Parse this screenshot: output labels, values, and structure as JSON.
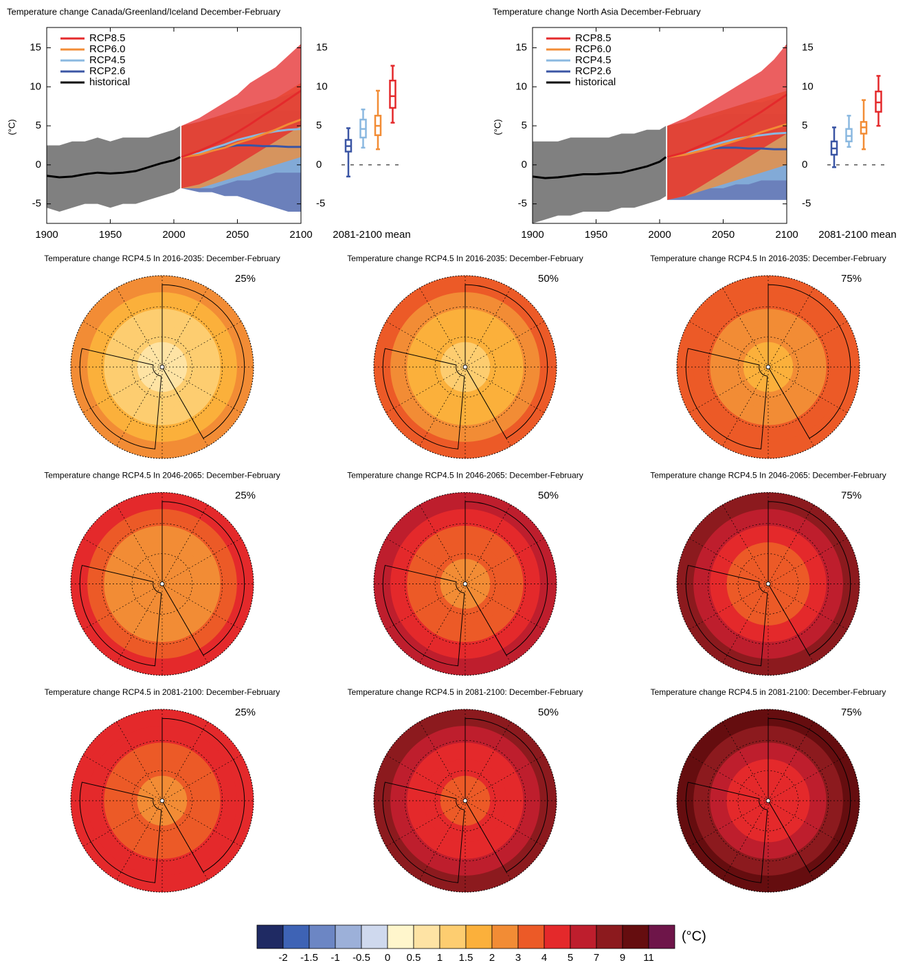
{
  "chart_data": [
    {
      "type": "line",
      "title": "Temperature change Canada/Greenland/Iceland December-February",
      "y_label": "(°C)",
      "box_label": "2081-2100 mean",
      "xlim": [
        1900,
        2100
      ],
      "xticks": [
        1900,
        1950,
        2000,
        2050,
        2100
      ],
      "ylim": [
        -7.5,
        17.6
      ],
      "yticks": [
        -5,
        0,
        5,
        10,
        15
      ],
      "series": [
        {
          "name": "RCP8.5",
          "color": "#e4292b",
          "x": [
            2006,
            2020,
            2030,
            2040,
            2050,
            2060,
            2070,
            2080,
            2090,
            2100
          ],
          "values": [
            1.0,
            1.8,
            2.5,
            3.3,
            4.2,
            5.2,
            6.3,
            7.3,
            8.4,
            9.5
          ],
          "low": [
            -3,
            -2.5,
            -1.8,
            -1,
            0,
            1,
            2,
            3,
            4,
            5
          ],
          "high": [
            5,
            6,
            7,
            8,
            9,
            10.5,
            11.5,
            12.5,
            14,
            15.5
          ],
          "box": [
            5.4,
            7.3,
            8.8,
            10.8,
            12.7
          ]
        },
        {
          "name": "RCP6.0",
          "color": "#f28c35",
          "x": [
            2006,
            2020,
            2030,
            2040,
            2050,
            2060,
            2070,
            2080,
            2090,
            2100
          ],
          "values": [
            1.0,
            1.3,
            1.8,
            2.2,
            2.8,
            3.3,
            3.9,
            4.5,
            5.2,
            5.8
          ],
          "low": [
            -3,
            -3,
            -2.5,
            -2,
            -1.5,
            -1,
            -0.5,
            0,
            0.5,
            1
          ],
          "high": [
            5,
            5.5,
            6,
            6.5,
            7,
            7.5,
            8,
            8.5,
            9.5,
            10.5
          ],
          "box": [
            2.0,
            3.8,
            5.0,
            6.3,
            9.5
          ]
        },
        {
          "name": "RCP4.5",
          "color": "#8ab8e0",
          "x": [
            2006,
            2020,
            2030,
            2040,
            2050,
            2060,
            2070,
            2080,
            2090,
            2100
          ],
          "values": [
            1.0,
            1.5,
            2.1,
            2.6,
            3.2,
            3.6,
            4.0,
            4.3,
            4.5,
            4.6
          ],
          "low": [
            -3,
            -3,
            -3,
            -2.5,
            -2,
            -2,
            -1.5,
            -1,
            -1,
            -1
          ],
          "high": [
            5,
            5.5,
            6,
            6.5,
            7,
            7.5,
            8,
            8.5,
            9,
            9.5
          ],
          "box": [
            2.2,
            3.5,
            4.6,
            5.8,
            7.1
          ]
        },
        {
          "name": "RCP2.6",
          "color": "#3a55a4",
          "x": [
            2006,
            2020,
            2030,
            2040,
            2050,
            2060,
            2070,
            2080,
            2090,
            2100
          ],
          "values": [
            1.0,
            1.5,
            2.0,
            2.3,
            2.5,
            2.5,
            2.4,
            2.4,
            2.3,
            2.3
          ],
          "low": [
            -3,
            -3.5,
            -3.5,
            -4,
            -4,
            -4.5,
            -5,
            -5.5,
            -6,
            -6
          ],
          "high": [
            5,
            5.5,
            6,
            6,
            6.5,
            6.5,
            7,
            7,
            7,
            7
          ],
          "box": [
            -1.5,
            1.7,
            2.4,
            3.2,
            4.7
          ]
        },
        {
          "name": "historical",
          "color": "#000000",
          "x": [
            1900,
            1910,
            1920,
            1930,
            1940,
            1950,
            1960,
            1970,
            1980,
            1990,
            2000,
            2005
          ],
          "values": [
            -1.4,
            -1.6,
            -1.5,
            -1.2,
            -1.0,
            -1.1,
            -1.0,
            -0.8,
            -0.3,
            0.2,
            0.6,
            1.0
          ],
          "low": [
            -5.5,
            -6,
            -5.5,
            -5,
            -5,
            -5.5,
            -5,
            -5,
            -4.5,
            -4,
            -3.5,
            -3
          ],
          "high": [
            2.5,
            2.5,
            3,
            3,
            3.5,
            3,
            3.5,
            3.5,
            3.5,
            4,
            4.5,
            5
          ]
        }
      ]
    },
    {
      "type": "line",
      "title": "Temperature change North Asia December-February",
      "y_label": "(°C)",
      "box_label": "2081-2100 mean",
      "xlim": [
        1900,
        2100
      ],
      "xticks": [
        1900,
        1950,
        2000,
        2050,
        2100
      ],
      "ylim": [
        -7.5,
        17.6
      ],
      "yticks": [
        -5,
        0,
        5,
        10,
        15
      ],
      "series": [
        {
          "name": "RCP8.5",
          "color": "#e4292b",
          "x": [
            2006,
            2020,
            2030,
            2040,
            2050,
            2060,
            2070,
            2080,
            2090,
            2100
          ],
          "values": [
            1.0,
            1.6,
            2.3,
            3.0,
            3.8,
            4.8,
            5.8,
            6.8,
            7.9,
            9.0
          ],
          "low": [
            -4.5,
            -4,
            -3,
            -2,
            -1,
            0,
            1,
            2,
            3,
            4
          ],
          "high": [
            5,
            6,
            7,
            8,
            9,
            10,
            11,
            12,
            13.5,
            15.5
          ],
          "box": [
            5.0,
            6.8,
            8.0,
            9.4,
            11.4
          ]
        },
        {
          "name": "RCP6.0",
          "color": "#f28c35",
          "x": [
            2006,
            2020,
            2030,
            2040,
            2050,
            2060,
            2070,
            2080,
            2090,
            2100
          ],
          "values": [
            1.0,
            1.3,
            1.7,
            2.1,
            2.6,
            3.1,
            3.6,
            4.2,
            4.7,
            5.2
          ],
          "low": [
            -4.5,
            -4,
            -3.5,
            -3,
            -2.5,
            -2,
            -1.5,
            -1,
            -0.5,
            0
          ],
          "high": [
            5,
            5.5,
            6,
            6.5,
            7,
            7.5,
            8,
            8.5,
            9,
            9.5
          ],
          "box": [
            2.0,
            4.0,
            4.8,
            5.5,
            8.3
          ]
        },
        {
          "name": "RCP4.5",
          "color": "#8ab8e0",
          "x": [
            2006,
            2020,
            2030,
            2040,
            2050,
            2060,
            2070,
            2080,
            2090,
            2100
          ],
          "values": [
            1.0,
            1.4,
            1.9,
            2.4,
            2.9,
            3.3,
            3.6,
            3.8,
            4.0,
            4.1
          ],
          "low": [
            -4.5,
            -4,
            -3.5,
            -3,
            -3,
            -2.5,
            -2.5,
            -2,
            -2,
            -2
          ],
          "high": [
            5,
            5.5,
            6,
            6.5,
            7,
            7.5,
            8,
            8,
            8.5,
            8.5
          ],
          "box": [
            2.3,
            3.0,
            3.7,
            4.6,
            6.3
          ]
        },
        {
          "name": "RCP2.6",
          "color": "#3a55a4",
          "x": [
            2006,
            2020,
            2030,
            2040,
            2050,
            2060,
            2070,
            2080,
            2090,
            2100
          ],
          "values": [
            1.0,
            1.4,
            1.8,
            2.1,
            2.2,
            2.2,
            2.1,
            2.1,
            2.0,
            2.0
          ],
          "low": [
            -4.5,
            -4.5,
            -4.5,
            -4.5,
            -4.5,
            -4.5,
            -4.5,
            -4.5,
            -4.5,
            -4.5
          ],
          "high": [
            5,
            5.5,
            6,
            6,
            6.5,
            6.5,
            6.5,
            6.5,
            6.5,
            6.5
          ],
          "box": [
            -0.3,
            1.3,
            2.1,
            3.0,
            4.8
          ]
        },
        {
          "name": "historical",
          "color": "#000000",
          "x": [
            1900,
            1910,
            1920,
            1930,
            1940,
            1950,
            1960,
            1970,
            1980,
            1990,
            2000,
            2005
          ],
          "values": [
            -1.5,
            -1.7,
            -1.6,
            -1.4,
            -1.2,
            -1.2,
            -1.1,
            -1.0,
            -0.6,
            -0.2,
            0.4,
            1.0
          ],
          "low": [
            -7.5,
            -7,
            -6.5,
            -6.5,
            -6,
            -6,
            -6,
            -5.5,
            -5.5,
            -5,
            -4.5,
            -4
          ],
          "high": [
            3,
            3,
            3,
            3.5,
            3.5,
            3.5,
            3.5,
            4,
            4,
            4.5,
            4.5,
            5
          ]
        }
      ]
    }
  ],
  "maps": [
    {
      "title": "Temperature change RCP4.5 In 2016-2035: December-February",
      "label": "25%",
      "rings": [
        2.5,
        1.8,
        1.2,
        1.2,
        0.8
      ]
    },
    {
      "title": "Temperature change RCP4.5 In 2016-2035: December-February",
      "label": "50%",
      "rings": [
        3.5,
        2.5,
        1.8,
        1.8,
        1.2
      ]
    },
    {
      "title": "Temperature change RCP4.5 In 2016-2035: December-February",
      "label": "75%",
      "rings": [
        3.5,
        3.5,
        2.5,
        2.5,
        1.8
      ]
    },
    {
      "title": "Temperature change RCP4.5 In 2046-2065: December-February",
      "label": "25%",
      "rings": [
        4.5,
        3.5,
        2.5,
        2.5,
        2.5
      ]
    },
    {
      "title": "Temperature change RCP4.5 In 2046-2065: December-February",
      "label": "50%",
      "rings": [
        6,
        4.5,
        3.5,
        3.5,
        2.5
      ]
    },
    {
      "title": "Temperature change RCP4.5 In 2046-2065: December-February",
      "label": "75%",
      "rings": [
        8,
        6,
        4.5,
        3.5,
        3.5
      ]
    },
    {
      "title": "Temperature change RCP4.5 in 2081-2100: December-February",
      "label": "25%",
      "rings": [
        4.5,
        4.5,
        3.5,
        3.5,
        2.5
      ]
    },
    {
      "title": "Temperature change RCP4.5 in 2081-2100: December-February",
      "label": "50%",
      "rings": [
        8,
        6,
        4.5,
        4.5,
        3.5
      ]
    },
    {
      "title": "Temperature change RCP4.5 in 2081-2100: December-February",
      "label": "75%",
      "rings": [
        10,
        8,
        6,
        4.5,
        4.5
      ]
    }
  ],
  "colorbar": {
    "unit": "(°C)",
    "colors": [
      "#1f2a63",
      "#3e63b5",
      "#6c86c4",
      "#9cb0d9",
      "#cfd9ee",
      "#fff6cc",
      "#fee3a4",
      "#fdcd70",
      "#fbb03b",
      "#f28c35",
      "#ec5a27",
      "#e4292b",
      "#be1e2d",
      "#8c1a1e",
      "#650d0f",
      "#6e1549"
    ],
    "ticks": [
      -2,
      -1.5,
      -1,
      -0.5,
      0,
      0.5,
      1,
      1.5,
      2,
      3,
      4,
      5,
      7,
      9,
      11
    ]
  }
}
